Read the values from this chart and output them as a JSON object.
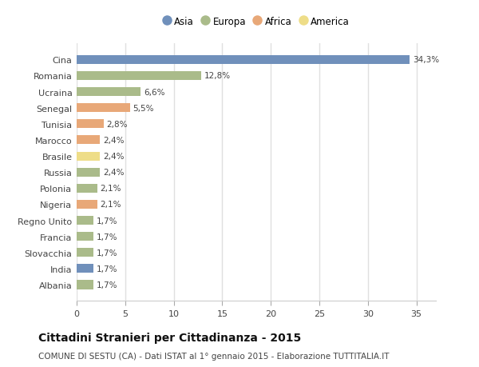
{
  "countries": [
    "Cina",
    "Romania",
    "Ucraina",
    "Senegal",
    "Tunisia",
    "Marocco",
    "Brasile",
    "Russia",
    "Polonia",
    "Nigeria",
    "Regno Unito",
    "Francia",
    "Slovacchia",
    "India",
    "Albania"
  ],
  "values": [
    34.3,
    12.8,
    6.6,
    5.5,
    2.8,
    2.4,
    2.4,
    2.4,
    2.1,
    2.1,
    1.7,
    1.7,
    1.7,
    1.7,
    1.7
  ],
  "labels": [
    "34,3%",
    "12,8%",
    "6,6%",
    "5,5%",
    "2,8%",
    "2,4%",
    "2,4%",
    "2,4%",
    "2,1%",
    "2,1%",
    "1,7%",
    "1,7%",
    "1,7%",
    "1,7%",
    "1,7%"
  ],
  "continents": [
    "Asia",
    "Europa",
    "Europa",
    "Africa",
    "Africa",
    "Africa",
    "America",
    "Europa",
    "Europa",
    "Africa",
    "Europa",
    "Europa",
    "Europa",
    "Asia",
    "Europa"
  ],
  "colors": {
    "Asia": "#7090bb",
    "Europa": "#aabb8a",
    "Africa": "#e8a878",
    "America": "#eedd88"
  },
  "legend_order": [
    "Asia",
    "Europa",
    "Africa",
    "America"
  ],
  "title": "Cittadini Stranieri per Cittadinanza - 2015",
  "subtitle": "COMUNE DI SESTU (CA) - Dati ISTAT al 1° gennaio 2015 - Elaborazione TUTTITALIA.IT",
  "xlim": [
    0,
    37
  ],
  "xticks": [
    0,
    5,
    10,
    15,
    20,
    25,
    30,
    35
  ],
  "background_color": "#ffffff",
  "plot_bg_color": "#ffffff",
  "grid_color": "#e0e0e0",
  "bar_height": 0.55,
  "title_fontsize": 10,
  "subtitle_fontsize": 7.5,
  "label_fontsize": 7.5,
  "tick_fontsize": 8,
  "legend_fontsize": 8.5
}
